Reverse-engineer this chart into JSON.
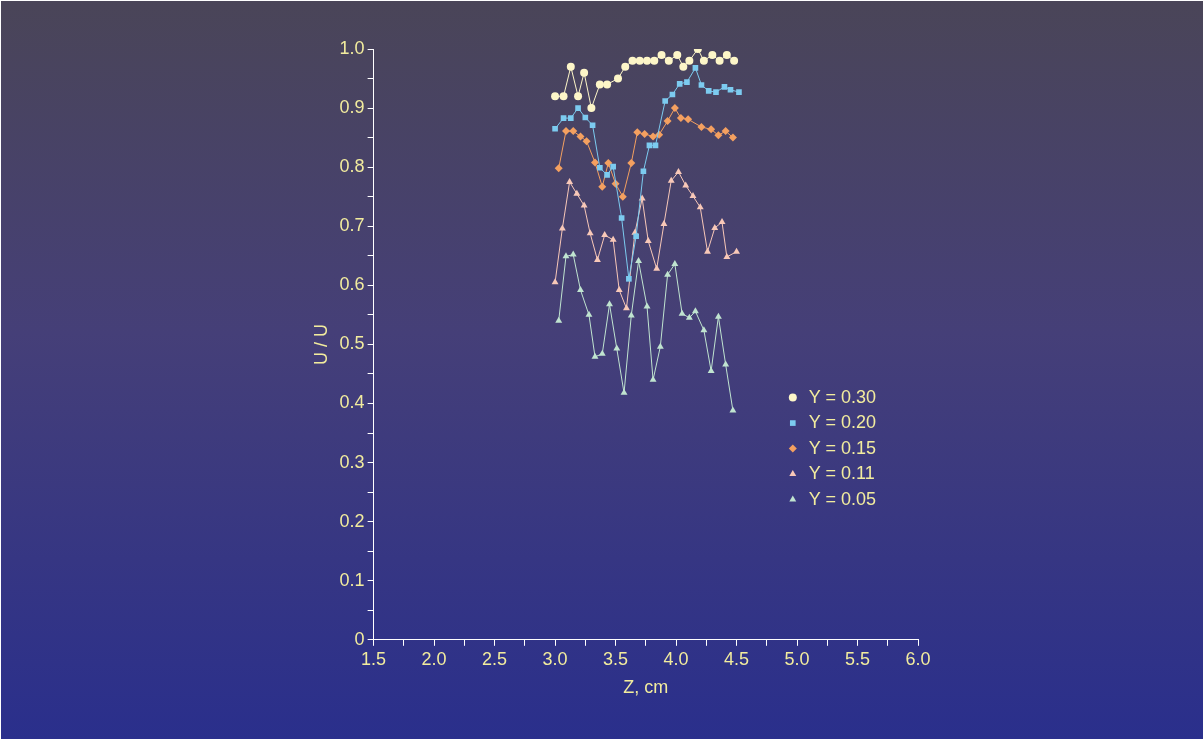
{
  "chart_data": {
    "type": "line",
    "xlabel": "Z, cm",
    "ylabel": "U / U",
    "xlim": [
      1.5,
      6.0
    ],
    "ylim": [
      0,
      1.0
    ],
    "xticks": [
      {
        "value": 1.5,
        "label": "1.5"
      },
      {
        "value": 1.75,
        "label": null
      },
      {
        "value": 2.0,
        "label": "2.0"
      },
      {
        "value": 2.25,
        "label": null
      },
      {
        "value": 2.5,
        "label": "2.5"
      },
      {
        "value": 2.75,
        "label": null
      },
      {
        "value": 3.0,
        "label": "3.0"
      },
      {
        "value": 3.25,
        "label": null
      },
      {
        "value": 3.5,
        "label": "3.5"
      },
      {
        "value": 3.75,
        "label": null
      },
      {
        "value": 4.0,
        "label": "4.0"
      },
      {
        "value": 4.25,
        "label": null
      },
      {
        "value": 4.5,
        "label": "4.5"
      },
      {
        "value": 4.75,
        "label": null
      },
      {
        "value": 5.0,
        "label": "5.0"
      },
      {
        "value": 5.25,
        "label": null
      },
      {
        "value": 5.5,
        "label": "5.5"
      },
      {
        "value": 5.75,
        "label": null
      },
      {
        "value": 6.0,
        "label": "6.0"
      }
    ],
    "yticks": [
      0,
      {
        "value": 0.05,
        "label": null
      },
      0.1,
      {
        "value": 0.15,
        "label": null
      },
      0.2,
      {
        "value": 0.25,
        "label": null
      },
      0.3,
      {
        "value": 0.35,
        "label": null
      },
      0.4,
      {
        "value": 0.45,
        "label": null
      },
      0.5,
      {
        "value": 0.55,
        "label": null
      },
      0.6,
      {
        "value": 0.65,
        "label": null
      },
      0.7,
      {
        "value": 0.75,
        "label": null
      },
      0.8,
      {
        "value": 0.85,
        "label": null
      },
      0.9,
      {
        "value": 0.95,
        "label": null
      },
      {
        "value": 1.0,
        "label": "1.0"
      }
    ],
    "grid": false,
    "legend": "right",
    "line_style": "solid",
    "series": [
      {
        "name": "Y = 0.30",
        "color": "#fdf6c8",
        "marker": "circle",
        "x": [
          3.0,
          3.07,
          3.13,
          3.19,
          3.24,
          3.3,
          3.37,
          3.43,
          3.52,
          3.58,
          3.64,
          3.7,
          3.76,
          3.82,
          3.88,
          3.94,
          4.01,
          4.06,
          4.11,
          4.18,
          4.23,
          4.3,
          4.36,
          4.42,
          4.48
        ],
        "values": [
          0.92,
          0.92,
          0.97,
          0.92,
          0.96,
          0.9,
          0.94,
          0.94,
          0.95,
          0.97,
          0.98,
          0.98,
          0.98,
          0.98,
          0.99,
          0.98,
          0.99,
          0.97,
          0.98,
          1.0,
          0.98,
          0.99,
          0.98,
          0.99,
          0.98
        ]
      },
      {
        "name": "Y = 0.20",
        "color": "#7ccbf0",
        "marker": "square",
        "x": [
          3.0,
          3.07,
          3.13,
          3.19,
          3.25,
          3.31,
          3.37,
          3.43,
          3.48,
          3.55,
          3.61,
          3.67,
          3.73,
          3.78,
          3.83,
          3.91,
          3.97,
          4.03,
          4.09,
          4.16,
          4.21,
          4.27,
          4.33,
          4.4,
          4.45,
          4.52
        ],
        "values": [
          0.865,
          0.883,
          0.883,
          0.9,
          0.884,
          0.871,
          0.799,
          0.787,
          0.801,
          0.714,
          0.611,
          0.683,
          0.793,
          0.837,
          0.837,
          0.912,
          0.923,
          0.941,
          0.944,
          0.968,
          0.939,
          0.929,
          0.927,
          0.936,
          0.931,
          0.927
        ]
      },
      {
        "name": "Y = 0.15",
        "color": "#f4a060",
        "marker": "diamond",
        "x": [
          3.03,
          3.09,
          3.15,
          3.21,
          3.26,
          3.33,
          3.39,
          3.44,
          3.5,
          3.56,
          3.63,
          3.68,
          3.74,
          3.81,
          3.86,
          3.93,
          3.99,
          4.04,
          4.1,
          4.21,
          4.29,
          4.35,
          4.41,
          4.47
        ],
        "values": [
          0.798,
          0.861,
          0.861,
          0.852,
          0.844,
          0.808,
          0.767,
          0.807,
          0.772,
          0.75,
          0.807,
          0.859,
          0.856,
          0.852,
          0.855,
          0.878,
          0.9,
          0.883,
          0.881,
          0.868,
          0.864,
          0.854,
          0.861,
          0.85
        ]
      },
      {
        "name": "Y = 0.11",
        "color": "#f8c8b8",
        "marker": "triangle",
        "x": [
          3.0,
          3.06,
          3.12,
          3.18,
          3.24,
          3.29,
          3.35,
          3.41,
          3.48,
          3.53,
          3.59,
          3.66,
          3.72,
          3.77,
          3.84,
          3.9,
          3.96,
          4.02,
          4.08,
          4.14,
          4.2,
          4.26,
          4.32,
          4.38,
          4.42,
          4.5
        ],
        "values": [
          0.605,
          0.696,
          0.775,
          0.755,
          0.735,
          0.688,
          0.643,
          0.685,
          0.677,
          0.592,
          0.561,
          0.689,
          0.747,
          0.675,
          0.628,
          0.704,
          0.777,
          0.792,
          0.769,
          0.751,
          0.732,
          0.657,
          0.697,
          0.707,
          0.648,
          0.657
        ]
      },
      {
        "name": "Y = 0.05",
        "color": "#c0e4d0",
        "marker": "triangle",
        "x": [
          3.03,
          3.09,
          3.15,
          3.21,
          3.28,
          3.33,
          3.39,
          3.45,
          3.51,
          3.57,
          3.63,
          3.69,
          3.76,
          3.81,
          3.87,
          3.93,
          3.99,
          4.05,
          4.11,
          4.16,
          4.23,
          4.29,
          4.35,
          4.41,
          4.47
        ],
        "values": [
          0.54,
          0.649,
          0.652,
          0.592,
          0.55,
          0.479,
          0.484,
          0.568,
          0.493,
          0.418,
          0.549,
          0.641,
          0.564,
          0.44,
          0.496,
          0.618,
          0.636,
          0.552,
          0.545,
          0.556,
          0.524,
          0.455,
          0.547,
          0.466,
          0.388
        ]
      }
    ]
  }
}
